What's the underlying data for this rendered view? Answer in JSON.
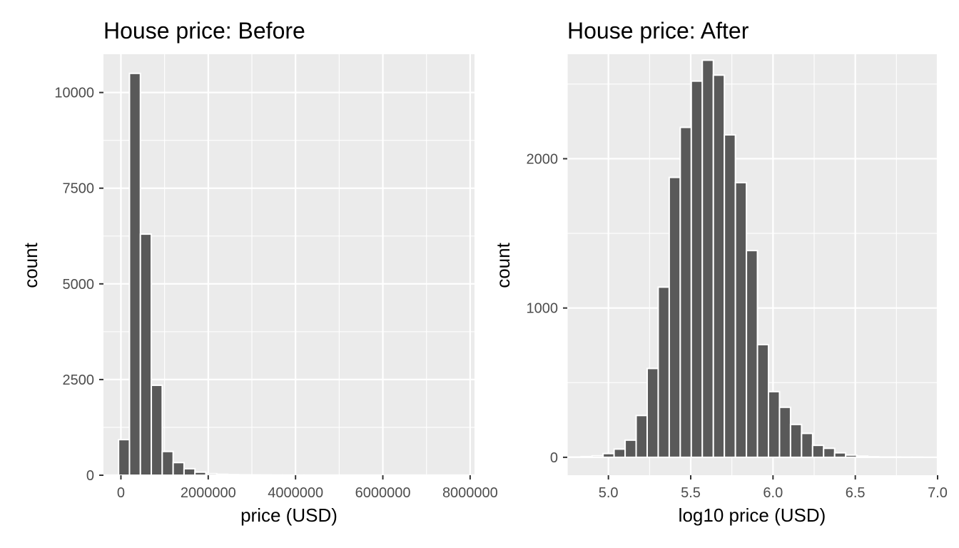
{
  "colors": {
    "panel_background": "#ebebeb",
    "bar_fill": "#595959",
    "bar_outline": "#ffffff",
    "grid": "#ffffff",
    "tick_text": "#4d4d4d"
  },
  "chart_data": [
    {
      "type": "bar",
      "title": "House price: Before",
      "xlabel": "price (USD)",
      "ylabel": "count",
      "grid": true,
      "xlim": [
        -400000,
        8100000
      ],
      "ylim": [
        0,
        11000
      ],
      "x_ticks": [
        0,
        2000000,
        4000000,
        6000000,
        8000000
      ],
      "x_tick_labels": [
        "0",
        "2000000",
        "4000000",
        "6000000",
        "8000000"
      ],
      "y_ticks": [
        0,
        2500,
        5000,
        7500,
        10000
      ],
      "y_tick_labels": [
        "0",
        "2500",
        "5000",
        "7500",
        "10000"
      ],
      "bin_width": 250000,
      "bin_centers": [
        71000,
        321000,
        571000,
        821000,
        1071000,
        1321000,
        1571000,
        1821000,
        2071000,
        2321000,
        2571000,
        2821000,
        3071000,
        3321000,
        3571000,
        3821000,
        4071000,
        4321000,
        4571000,
        4821000,
        5071000,
        5321000,
        5571000,
        5821000,
        6071000,
        6321000,
        6571000,
        6821000,
        7071000,
        7321000,
        7571000,
        7821000
      ],
      "values": [
        930,
        10500,
        6300,
        2350,
        620,
        330,
        170,
        80,
        40,
        25,
        15,
        10,
        8,
        5,
        4,
        3,
        2,
        2,
        1,
        1,
        1,
        1,
        1,
        1,
        1,
        1,
        1,
        1,
        1,
        1,
        1,
        1
      ]
    },
    {
      "type": "bar",
      "title": "House price: After",
      "xlabel": "log10 price (USD)",
      "ylabel": "count",
      "grid": true,
      "xlim": [
        4.75,
        7.0
      ],
      "ylim": [
        -120,
        2700
      ],
      "x_ticks": [
        5.0,
        5.5,
        6.0,
        6.5,
        7.0
      ],
      "x_tick_labels": [
        "5.0",
        "5.5",
        "6.0",
        "6.5",
        "7.0"
      ],
      "y_ticks": [
        0,
        1000,
        2000
      ],
      "y_tick_labels": [
        "0",
        "1000",
        "2000"
      ],
      "bin_width": 0.067,
      "bin_centers": [
        4.8,
        4.867,
        4.934,
        5.001,
        5.068,
        5.135,
        5.202,
        5.269,
        5.336,
        5.403,
        5.47,
        5.537,
        5.604,
        5.671,
        5.738,
        5.805,
        5.872,
        5.939,
        6.006,
        6.073,
        6.14,
        6.207,
        6.274,
        6.341,
        6.408,
        6.475,
        6.542,
        6.609,
        6.676,
        6.743,
        6.81,
        6.877
      ],
      "values": [
        2,
        5,
        10,
        25,
        55,
        115,
        280,
        595,
        1140,
        1875,
        2210,
        2520,
        2660,
        2560,
        2160,
        1840,
        1385,
        755,
        440,
        335,
        220,
        160,
        80,
        60,
        30,
        15,
        8,
        4,
        2,
        2,
        1,
        1
      ]
    }
  ]
}
